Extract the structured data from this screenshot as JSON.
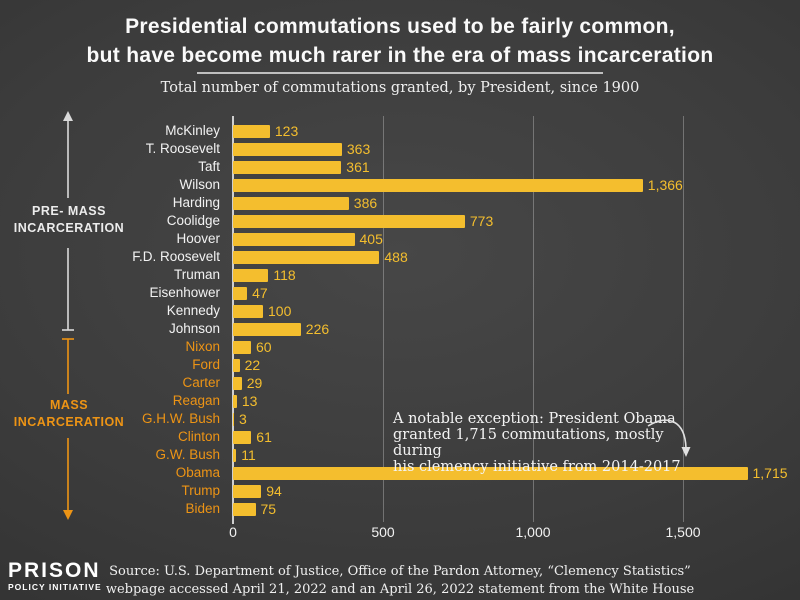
{
  "header": {
    "title_line1": "Presidential commutations used to be fairly common,",
    "title_line2": "but have become much rarer in the era of mass incarceration",
    "subtitle": "Total number of commutations granted, by President, since 1900"
  },
  "chart_data": {
    "type": "bar",
    "orientation": "horizontal",
    "title": "Presidential commutations used to be fairly common, but have become much rarer in the era of mass incarceration",
    "subtitle": "Total number of commutations granted, by President, since 1900",
    "categories": [
      "McKinley",
      "T. Roosevelt",
      "Taft",
      "Wilson",
      "Harding",
      "Coolidge",
      "Hoover",
      "F.D. Roosevelt",
      "Truman",
      "Eisenhower",
      "Kennedy",
      "Johnson",
      "Nixon",
      "Ford",
      "Carter",
      "Reagan",
      "G.H.W. Bush",
      "Clinton",
      "G.W. Bush",
      "Obama",
      "Trump",
      "Biden"
    ],
    "values": [
      123,
      363,
      361,
      1366,
      386,
      773,
      405,
      488,
      118,
      47,
      100,
      226,
      60,
      22,
      29,
      13,
      3,
      61,
      11,
      1715,
      94,
      75
    ],
    "value_labels": [
      "123",
      "363",
      "361",
      "1,366",
      "386",
      "773",
      "405",
      "488",
      "118",
      "47",
      "100",
      "226",
      "60",
      "22",
      "29",
      "13",
      "3",
      "61",
      "11",
      "1,715",
      "94",
      "75"
    ],
    "eras": [
      "pre",
      "pre",
      "pre",
      "pre",
      "pre",
      "pre",
      "pre",
      "pre",
      "pre",
      "pre",
      "pre",
      "pre",
      "mass",
      "mass",
      "mass",
      "mass",
      "mass",
      "mass",
      "mass",
      "mass",
      "mass",
      "mass"
    ],
    "xlim": [
      0,
      1890
    ],
    "xticks": [
      {
        "value": 0,
        "label": "0"
      },
      {
        "value": 500,
        "label": "500"
      },
      {
        "value": 1000,
        "label": "1,000"
      },
      {
        "value": 1500,
        "label": "1,500"
      }
    ],
    "grid": "vertical gridlines at ticks",
    "legend": "none"
  },
  "annotations": {
    "pre_mass": {
      "line1": "PRE- MASS",
      "line2": "INCARCERATION"
    },
    "mass": {
      "line1": "MASS",
      "line2": "INCARCERATION"
    },
    "obama_note": {
      "line1": "A notable exception: President Obama",
      "line2": "granted 1,715 commutations, mostly during",
      "line3": "his clemency initiative from 2014-2017"
    }
  },
  "footer": {
    "logo_line1": "PRISON",
    "logo_line2": "POLICY INITIATIVE",
    "source_line1": "Source: U.S. Department of Justice, Office of the Pardon Attorney, “Clemency Statistics”",
    "source_line2": "webpage accessed April 21, 2022 and an April 26, 2022 statement from the White House"
  },
  "colors": {
    "bar": "#f4be2e",
    "value_label": "#f4be2e",
    "pre_era_label": "#f2f2f2",
    "mass_era_label": "#ed9415",
    "background_center": "#474747",
    "background_edge": "#2b2b2b",
    "gridline": "#9a9a9a",
    "text": "#fafafa"
  }
}
